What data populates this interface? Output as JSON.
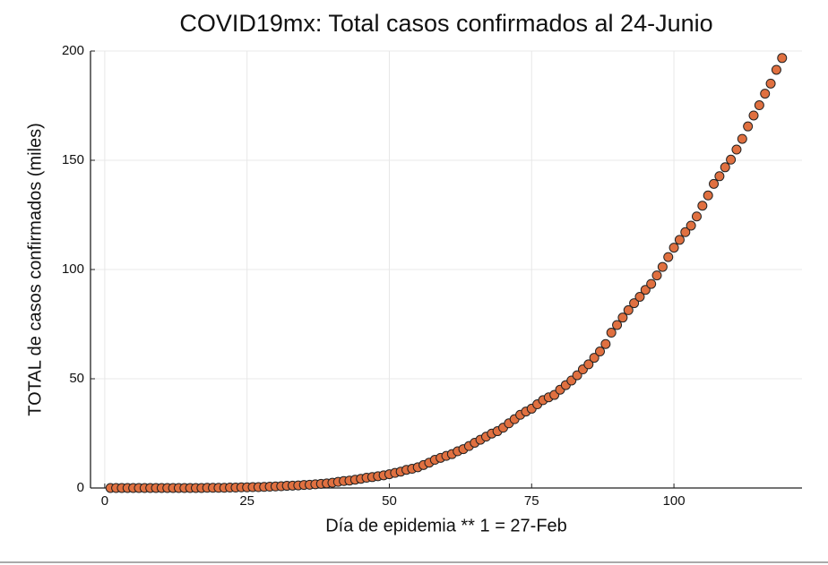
{
  "chart_data": {
    "type": "scatter",
    "title": "COVID19mx: Total casos confirmados al 24-Junio",
    "xlabel": "Día de epidemia ** 1 = 27-Feb",
    "ylabel": "TOTAL de casos confirmados (miles)",
    "color": "#e07040",
    "xlim": [
      -2.5,
      122.5
    ],
    "ylim": [
      0,
      200
    ],
    "xticks": [
      0,
      25,
      50,
      75,
      100
    ],
    "yticks": [
      0,
      50,
      100,
      150,
      200
    ],
    "grid": true,
    "x": [
      1,
      2,
      3,
      4,
      5,
      6,
      7,
      8,
      9,
      10,
      11,
      12,
      13,
      14,
      15,
      16,
      17,
      18,
      19,
      20,
      21,
      22,
      23,
      24,
      25,
      26,
      27,
      28,
      29,
      30,
      31,
      32,
      33,
      34,
      35,
      36,
      37,
      38,
      39,
      40,
      41,
      42,
      43,
      44,
      45,
      46,
      47,
      48,
      49,
      50,
      51,
      52,
      53,
      54,
      55,
      56,
      57,
      58,
      59,
      60,
      61,
      62,
      63,
      64,
      65,
      66,
      67,
      68,
      69,
      70,
      71,
      72,
      73,
      74,
      75,
      76,
      77,
      78,
      79,
      80,
      81,
      82,
      83,
      84,
      85,
      86,
      87,
      88,
      89,
      90,
      91,
      92,
      93,
      94,
      95,
      96,
      97,
      98,
      99,
      100,
      101,
      102,
      103,
      104,
      105,
      106,
      107,
      108,
      109,
      110,
      111,
      112,
      113,
      114,
      115,
      116,
      117,
      118,
      119
    ],
    "values": [
      0,
      0,
      0,
      0,
      0,
      0,
      0,
      0,
      0,
      0,
      0,
      0,
      0,
      0,
      0,
      0,
      0,
      0.1,
      0.1,
      0.1,
      0.1,
      0.2,
      0.2,
      0.3,
      0.3,
      0.4,
      0.4,
      0.5,
      0.6,
      0.7,
      0.8,
      1.0,
      1.1,
      1.2,
      1.4,
      1.5,
      1.7,
      1.9,
      2.1,
      2.4,
      2.8,
      3.2,
      3.4,
      3.8,
      4.2,
      4.7,
      5.0,
      5.4,
      5.8,
      6.3,
      6.9,
      7.5,
      8.3,
      8.8,
      9.5,
      10.5,
      11.6,
      12.9,
      13.8,
      14.7,
      15.5,
      16.8,
      17.8,
      19.2,
      20.7,
      22.1,
      23.5,
      24.9,
      26.0,
      27.6,
      29.6,
      31.5,
      33.5,
      35.0,
      36.3,
      38.3,
      40.2,
      41.5,
      42.6,
      45.0,
      47.1,
      49.2,
      51.6,
      54.3,
      56.6,
      59.6,
      62.5,
      65.9,
      71.1,
      74.6,
      78.0,
      81.4,
      84.6,
      87.5,
      90.7,
      93.4,
      97.3,
      101.2,
      105.7,
      110.0,
      113.6,
      117.1,
      120.1,
      124.3,
      129.2,
      133.9,
      139.2,
      142.7,
      146.8,
      150.3,
      154.9,
      159.8,
      165.5,
      170.5,
      175.2,
      180.5,
      185.1,
      191.4,
      196.8
    ]
  }
}
